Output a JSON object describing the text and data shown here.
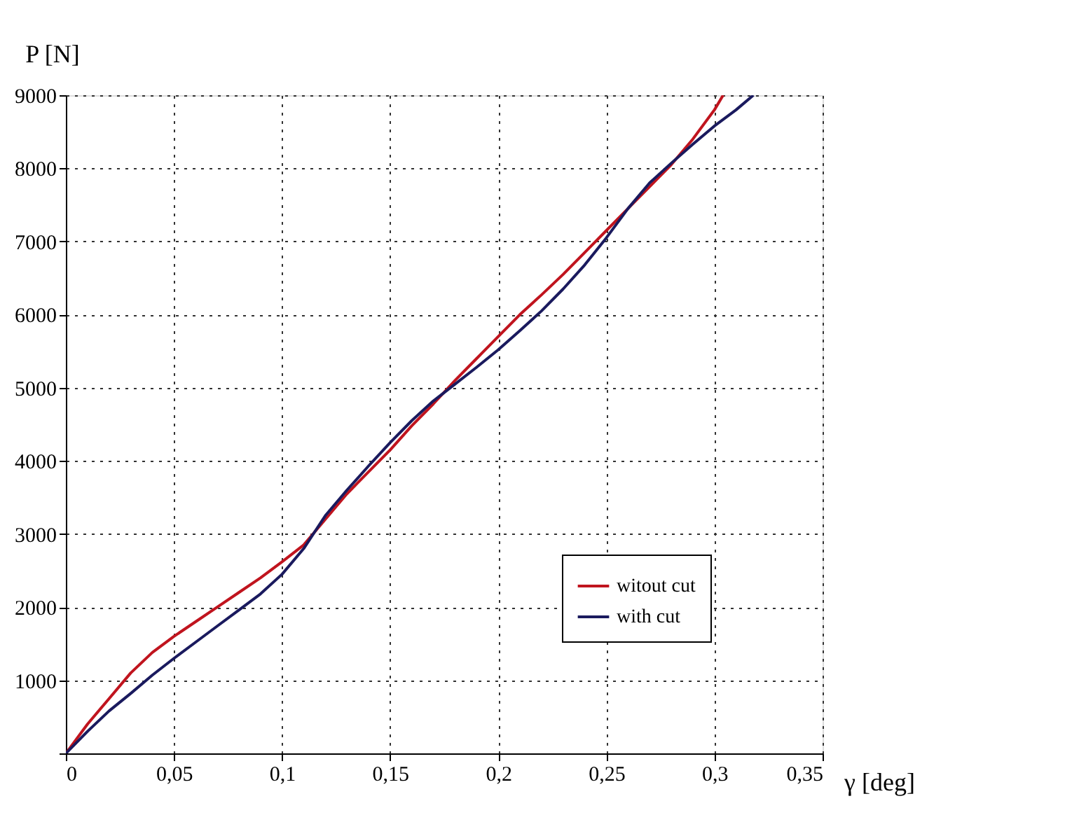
{
  "chart_data": {
    "type": "line",
    "xlabel": "γ [deg]",
    "ylabel": "P [N]",
    "xlim": [
      0,
      0.35
    ],
    "ylim": [
      0,
      9000
    ],
    "xticks": [
      {
        "value": 0,
        "label": "0"
      },
      {
        "value": 0.05,
        "label": "0,05"
      },
      {
        "value": 0.1,
        "label": "0,1"
      },
      {
        "value": 0.15,
        "label": "0,15"
      },
      {
        "value": 0.2,
        "label": "0,2"
      },
      {
        "value": 0.25,
        "label": "0,25"
      },
      {
        "value": 0.3,
        "label": "0,3"
      },
      {
        "value": 0.35,
        "label": "0,35"
      }
    ],
    "yticks": [
      {
        "value": 0,
        "label": null
      },
      1000,
      2000,
      3000,
      4000,
      5000,
      6000,
      7000,
      8000,
      9000
    ],
    "grid": true,
    "legend": "bottom right",
    "line_style": "solid",
    "marker": "none",
    "series": [
      {
        "name": "witout cut",
        "color": "#c0141e",
        "x": [
          0,
          0.01,
          0.02,
          0.03,
          0.04,
          0.05,
          0.06,
          0.07,
          0.08,
          0.09,
          0.1,
          0.11,
          0.12,
          0.13,
          0.14,
          0.15,
          0.16,
          0.17,
          0.18,
          0.19,
          0.2,
          0.21,
          0.22,
          0.23,
          0.24,
          0.25,
          0.26,
          0.27,
          0.28,
          0.29,
          0.3,
          0.304
        ],
        "values": [
          0,
          400,
          750,
          1100,
          1380,
          1600,
          1800,
          2000,
          2200,
          2400,
          2620,
          2850,
          3200,
          3550,
          3850,
          4150,
          4480,
          4780,
          5100,
          5400,
          5700,
          6000,
          6270,
          6550,
          6850,
          7150,
          7450,
          7750,
          8050,
          8400,
          8800,
          9000
        ]
      },
      {
        "name": "with cut",
        "color": "#1a1a5e",
        "x": [
          0,
          0.01,
          0.02,
          0.03,
          0.04,
          0.05,
          0.06,
          0.07,
          0.08,
          0.09,
          0.1,
          0.11,
          0.12,
          0.13,
          0.14,
          0.15,
          0.16,
          0.17,
          0.18,
          0.19,
          0.2,
          0.21,
          0.22,
          0.23,
          0.24,
          0.25,
          0.26,
          0.27,
          0.28,
          0.29,
          0.3,
          0.31,
          0.318
        ],
        "values": [
          0,
          300,
          580,
          820,
          1070,
          1300,
          1520,
          1740,
          1960,
          2180,
          2450,
          2800,
          3250,
          3600,
          3930,
          4250,
          4550,
          4820,
          5050,
          5280,
          5520,
          5780,
          6050,
          6350,
          6680,
          7050,
          7450,
          7800,
          8070,
          8330,
          8580,
          8800,
          9000
        ]
      }
    ]
  }
}
